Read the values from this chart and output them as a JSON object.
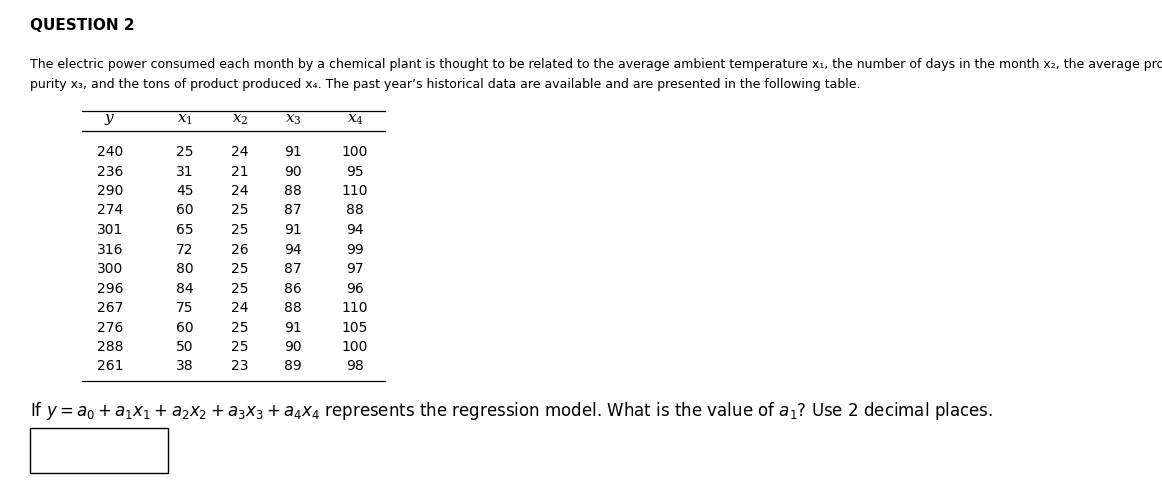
{
  "title": "QUESTION 2",
  "description_line1": "The electric power consumed each month by a chemical plant is thought to be related to the average ambient temperature x₁, the number of days in the month x₂, the average product",
  "description_line2": "purity x₃, and the tons of product produced x₄. The past year’s historical data are available and are presented in the following table.",
  "data": [
    [
      240,
      25,
      24,
      91,
      100
    ],
    [
      236,
      31,
      21,
      90,
      95
    ],
    [
      290,
      45,
      24,
      88,
      110
    ],
    [
      274,
      60,
      25,
      87,
      88
    ],
    [
      301,
      65,
      25,
      91,
      94
    ],
    [
      316,
      72,
      26,
      94,
      99
    ],
    [
      300,
      80,
      25,
      87,
      97
    ],
    [
      296,
      84,
      25,
      86,
      96
    ],
    [
      267,
      75,
      24,
      88,
      110
    ],
    [
      276,
      60,
      25,
      91,
      105
    ],
    [
      288,
      50,
      25,
      90,
      100
    ],
    [
      261,
      38,
      23,
      89,
      98
    ]
  ],
  "bg_color": "#ffffff",
  "text_color": "#000000",
  "font_size_title": 11,
  "font_size_body": 10,
  "font_size_desc": 9,
  "font_size_equation": 12
}
